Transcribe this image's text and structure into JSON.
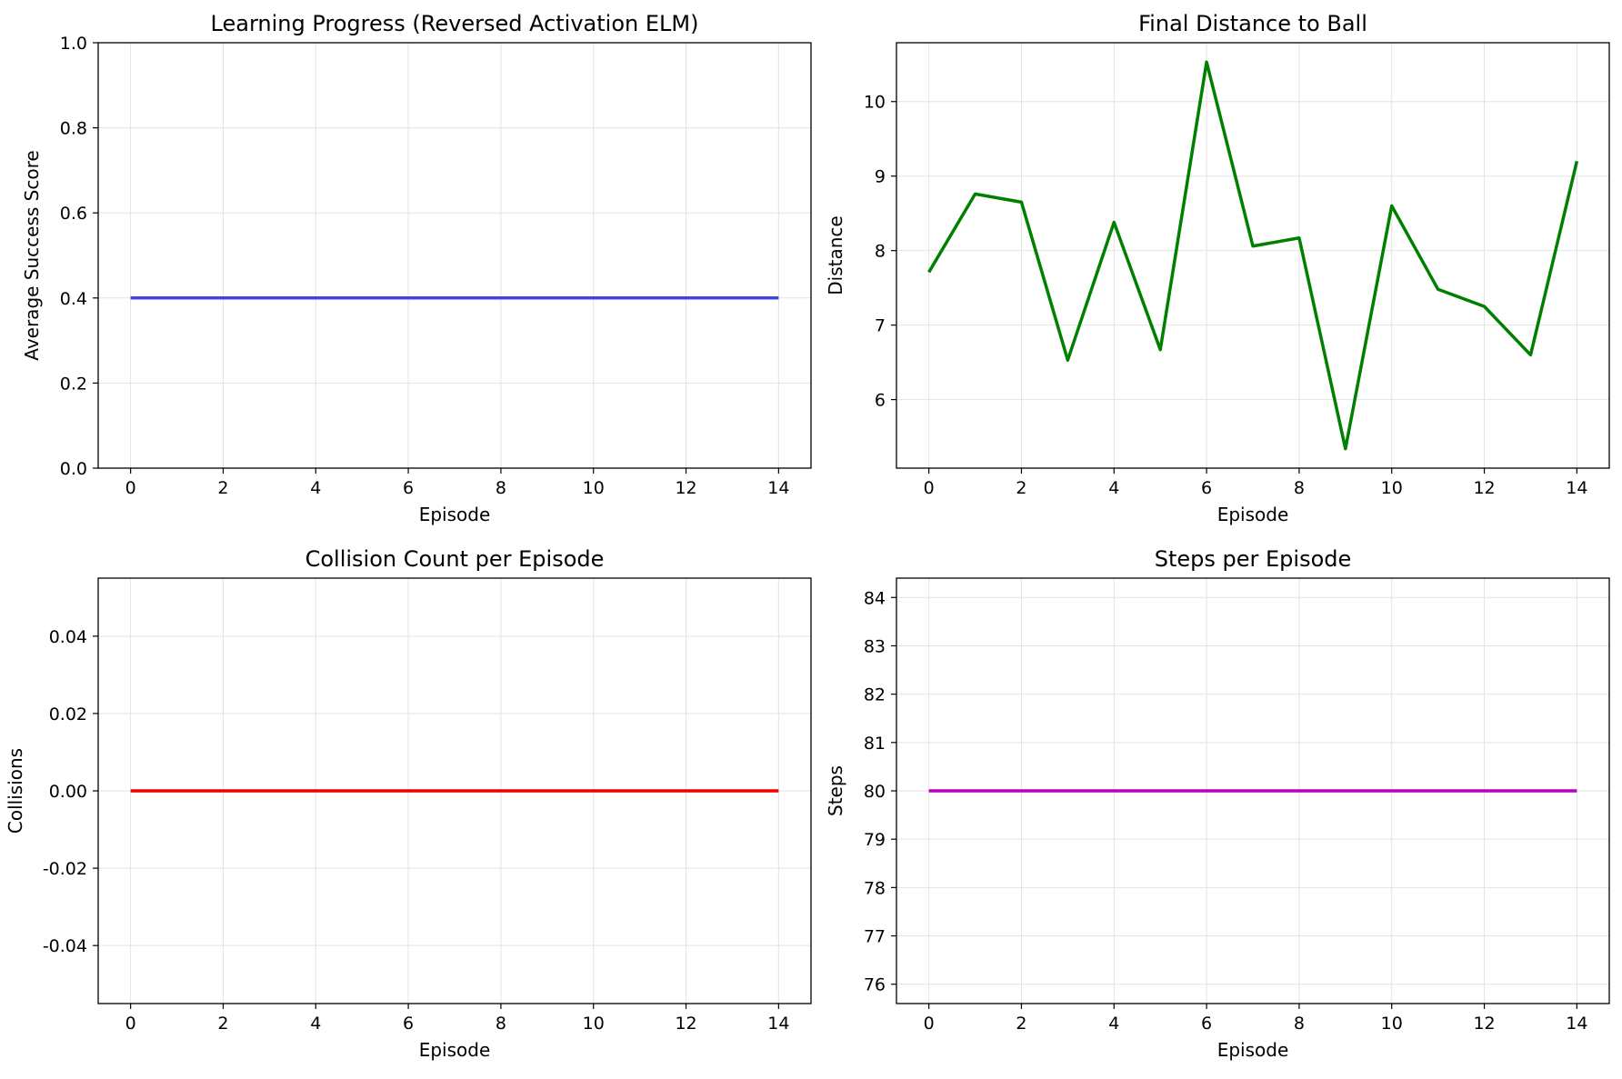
{
  "chart_data": [
    {
      "type": "line",
      "title": "Learning Progress (Reversed Activation ELM)",
      "xlabel": "Episode",
      "ylabel": "Average Success Score",
      "xlim": [
        -0.7,
        14.7
      ],
      "ylim": [
        0.0,
        1.0
      ],
      "xticks": [
        0,
        2,
        4,
        6,
        8,
        10,
        12,
        14
      ],
      "xtick_labels": [
        "0",
        "2",
        "4",
        "6",
        "8",
        "10",
        "12",
        "14"
      ],
      "yticks": [
        0.0,
        0.2,
        0.4,
        0.6,
        0.8,
        1.0
      ],
      "ytick_labels": [
        "0.0",
        "0.2",
        "0.4",
        "0.6",
        "0.8",
        "1.0"
      ],
      "grid": true,
      "color": "#4444dd",
      "x": [
        0,
        1,
        2,
        3,
        4,
        5,
        6,
        7,
        8,
        9,
        10,
        11,
        12,
        13,
        14
      ],
      "y": [
        0.4,
        0.4,
        0.4,
        0.4,
        0.4,
        0.4,
        0.4,
        0.4,
        0.4,
        0.4,
        0.4,
        0.4,
        0.4,
        0.4,
        0.4
      ]
    },
    {
      "type": "line",
      "title": "Final Distance to Ball",
      "xlabel": "Episode",
      "ylabel": "Distance",
      "xlim": [
        -0.7,
        14.7
      ],
      "ylim": [
        5.08,
        10.79
      ],
      "xticks": [
        0,
        2,
        4,
        6,
        8,
        10,
        12,
        14
      ],
      "xtick_labels": [
        "0",
        "2",
        "4",
        "6",
        "8",
        "10",
        "12",
        "14"
      ],
      "yticks": [
        6,
        7,
        8,
        9,
        10
      ],
      "ytick_labels": [
        "6",
        "7",
        "8",
        "9",
        "10"
      ],
      "grid": true,
      "color": "#008000",
      "x": [
        0,
        1,
        2,
        3,
        4,
        5,
        6,
        7,
        8,
        9,
        10,
        11,
        12,
        13,
        14
      ],
      "y": [
        7.71,
        8.76,
        8.65,
        6.53,
        8.38,
        6.67,
        10.53,
        8.06,
        8.17,
        5.34,
        8.6,
        7.48,
        7.25,
        6.6,
        9.2
      ]
    },
    {
      "type": "line",
      "title": "Collision Count per Episode",
      "xlabel": "Episode",
      "ylabel": "Collisions",
      "xlim": [
        -0.7,
        14.7
      ],
      "ylim": [
        -0.055,
        0.055
      ],
      "xticks": [
        0,
        2,
        4,
        6,
        8,
        10,
        12,
        14
      ],
      "xtick_labels": [
        "0",
        "2",
        "4",
        "6",
        "8",
        "10",
        "12",
        "14"
      ],
      "yticks": [
        -0.04,
        -0.02,
        0.0,
        0.02,
        0.04
      ],
      "ytick_labels": [
        "-0.04",
        "-0.02",
        "0.00",
        "0.02",
        "0.04"
      ],
      "grid": true,
      "color": "#ee0000",
      "x": [
        0,
        1,
        2,
        3,
        4,
        5,
        6,
        7,
        8,
        9,
        10,
        11,
        12,
        13,
        14
      ],
      "y": [
        0,
        0,
        0,
        0,
        0,
        0,
        0,
        0,
        0,
        0,
        0,
        0,
        0,
        0,
        0
      ]
    },
    {
      "type": "line",
      "title": "Steps per Episode",
      "xlabel": "Episode",
      "ylabel": "Steps",
      "xlim": [
        -0.7,
        14.7
      ],
      "ylim": [
        75.6,
        84.4
      ],
      "xticks": [
        0,
        2,
        4,
        6,
        8,
        10,
        12,
        14
      ],
      "xtick_labels": [
        "0",
        "2",
        "4",
        "6",
        "8",
        "10",
        "12",
        "14"
      ],
      "yticks": [
        76,
        77,
        78,
        79,
        80,
        81,
        82,
        83,
        84
      ],
      "ytick_labels": [
        "76",
        "77",
        "78",
        "79",
        "80",
        "81",
        "82",
        "83",
        "84"
      ],
      "grid": true,
      "color": "#bb00bb",
      "x": [
        0,
        1,
        2,
        3,
        4,
        5,
        6,
        7,
        8,
        9,
        10,
        11,
        12,
        13,
        14
      ],
      "y": [
        80,
        80,
        80,
        80,
        80,
        80,
        80,
        80,
        80,
        80,
        80,
        80,
        80,
        80,
        80
      ]
    }
  ]
}
